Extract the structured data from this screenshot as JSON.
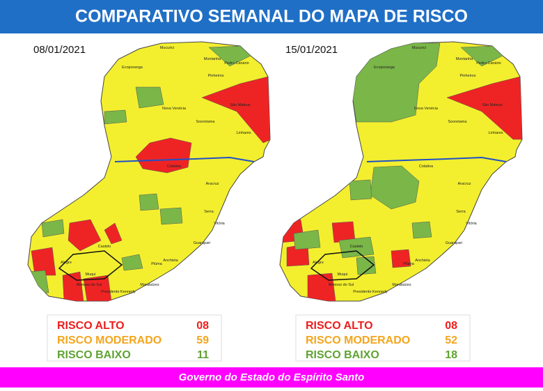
{
  "header": {
    "title": "COMPARATIVO SEMANAL DO MAPA DE RISCO"
  },
  "maps": [
    {
      "date": "08/01/2021",
      "labels": [
        "Mucurici",
        "Montanha",
        "Pedro Canário",
        "Ecoporanga",
        "Pinheiros",
        "São Mateus",
        "Nova Venécia",
        "Sooretama",
        "Linhares",
        "Colatina",
        "Aracruz",
        "Serra",
        "Vitória",
        "Castelo",
        "Alegre",
        "Muqui",
        "Guarapari",
        "Anchieta",
        "Piúma",
        "Marataízes",
        "Presidente Kennedy",
        "Mimoso do Sul"
      ],
      "legend": [
        {
          "label": "RISCO ALTO",
          "count": "08"
        },
        {
          "label": "RISCO MODERADO",
          "count": "59"
        },
        {
          "label": "RISCO BAIXO",
          "count": "11"
        }
      ]
    },
    {
      "date": "15/01/2021",
      "labels": [
        "Mucurici",
        "Montanha",
        "Pedro Canário",
        "Ecoporanga",
        "Pinheiros",
        "São Mateus",
        "Nova Venécia",
        "Sooretama",
        "Linhares",
        "Colatina",
        "Aracruz",
        "Serra",
        "Vitória",
        "Castelo",
        "Alegre",
        "Muqui",
        "Guarapari",
        "Anchieta",
        "Piúma",
        "Marataízes",
        "Presidente Kennedy",
        "Mimoso do Sul"
      ],
      "legend": [
        {
          "label": "RISCO ALTO",
          "count": "08"
        },
        {
          "label": "RISCO MODERADO",
          "count": "52"
        },
        {
          "label": "RISCO BAIXO",
          "count": "18"
        }
      ]
    }
  ],
  "footer": {
    "text": "Governo do Estado do Espírito Santo"
  }
}
